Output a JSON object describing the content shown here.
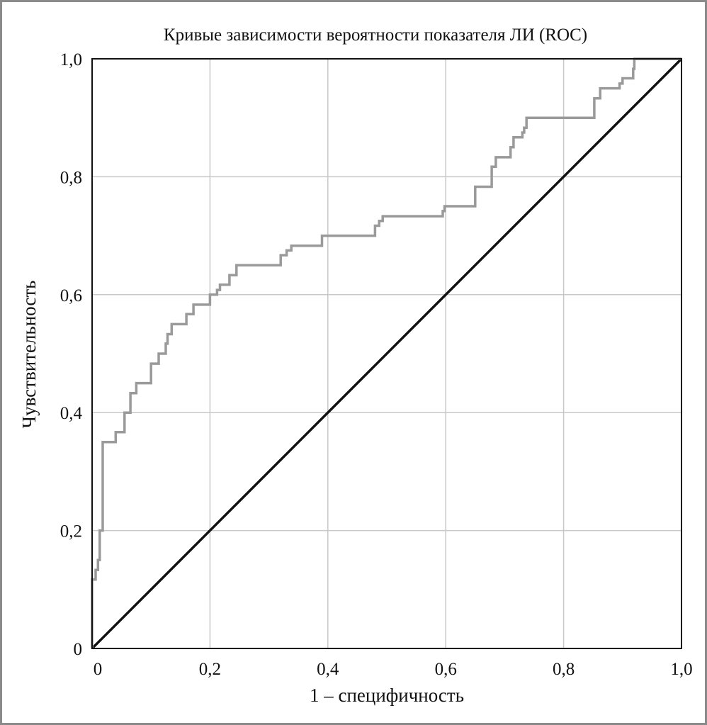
{
  "chart_data": {
    "type": "line",
    "title": "Кривые зависимости вероятности показателя ЛИ (ROC)",
    "xlabel": "1 – специфичность",
    "ylabel": "Чувствительность",
    "xlim": [
      0,
      1
    ],
    "ylim": [
      0,
      1
    ],
    "x_ticks": [
      0,
      0.2,
      0.4,
      0.6,
      0.8,
      1.0
    ],
    "y_ticks": [
      0,
      0.2,
      0.4,
      0.6,
      0.8,
      1.0
    ],
    "x_tick_labels": [
      "0",
      "0,2",
      "0,4",
      "0,6",
      "0,8",
      "1,0"
    ],
    "y_tick_labels": [
      "0",
      "0,2",
      "0,4",
      "0,6",
      "0,8",
      "1,0"
    ],
    "grid": true,
    "legend": "none",
    "colors": {
      "roc": "#9a9a9a",
      "reference": "#111111",
      "grid": "#c8c8c8",
      "frame": "#8a8a8a"
    },
    "series": [
      {
        "role": "roc",
        "x": [
          0,
          0,
          0.006,
          0.006,
          0.01,
          0.01,
          0.013,
          0.013,
          0.018,
          0.018,
          0.04,
          0.04,
          0.055,
          0.055,
          0.065,
          0.065,
          0.075,
          0.075,
          0.1,
          0.1,
          0.113,
          0.113,
          0.125,
          0.125,
          0.128,
          0.128,
          0.135,
          0.135,
          0.16,
          0.16,
          0.172,
          0.172,
          0.2,
          0.2,
          0.212,
          0.212,
          0.217,
          0.217,
          0.233,
          0.233,
          0.245,
          0.245,
          0.32,
          0.32,
          0.33,
          0.33,
          0.338,
          0.338,
          0.39,
          0.39,
          0.48,
          0.48,
          0.487,
          0.487,
          0.493,
          0.493,
          0.595,
          0.595,
          0.598,
          0.598,
          0.65,
          0.65,
          0.678,
          0.678,
          0.685,
          0.685,
          0.71,
          0.71,
          0.715,
          0.715,
          0.73,
          0.73,
          0.733,
          0.733,
          0.737,
          0.737,
          0.852,
          0.852,
          0.862,
          0.862,
          0.895,
          0.895,
          0.9,
          0.9,
          0.918,
          0.918,
          0.92,
          0.92,
          1.0
        ],
        "y": [
          0,
          0.117,
          0.117,
          0.133,
          0.133,
          0.15,
          0.15,
          0.2,
          0.2,
          0.35,
          0.35,
          0.367,
          0.367,
          0.4,
          0.4,
          0.433,
          0.433,
          0.45,
          0.45,
          0.483,
          0.483,
          0.5,
          0.5,
          0.517,
          0.517,
          0.533,
          0.533,
          0.55,
          0.55,
          0.567,
          0.567,
          0.583,
          0.583,
          0.6,
          0.6,
          0.608,
          0.608,
          0.617,
          0.617,
          0.633,
          0.633,
          0.65,
          0.65,
          0.667,
          0.667,
          0.675,
          0.675,
          0.683,
          0.683,
          0.7,
          0.7,
          0.717,
          0.717,
          0.725,
          0.725,
          0.733,
          0.733,
          0.742,
          0.742,
          0.75,
          0.75,
          0.783,
          0.783,
          0.817,
          0.817,
          0.833,
          0.833,
          0.85,
          0.85,
          0.867,
          0.867,
          0.875,
          0.875,
          0.883,
          0.883,
          0.9,
          0.9,
          0.933,
          0.933,
          0.95,
          0.95,
          0.958,
          0.958,
          0.967,
          0.967,
          0.983,
          0.983,
          1.0,
          1.0
        ]
      },
      {
        "role": "reference",
        "x": [
          0,
          1
        ],
        "y": [
          0,
          1
        ]
      }
    ]
  }
}
